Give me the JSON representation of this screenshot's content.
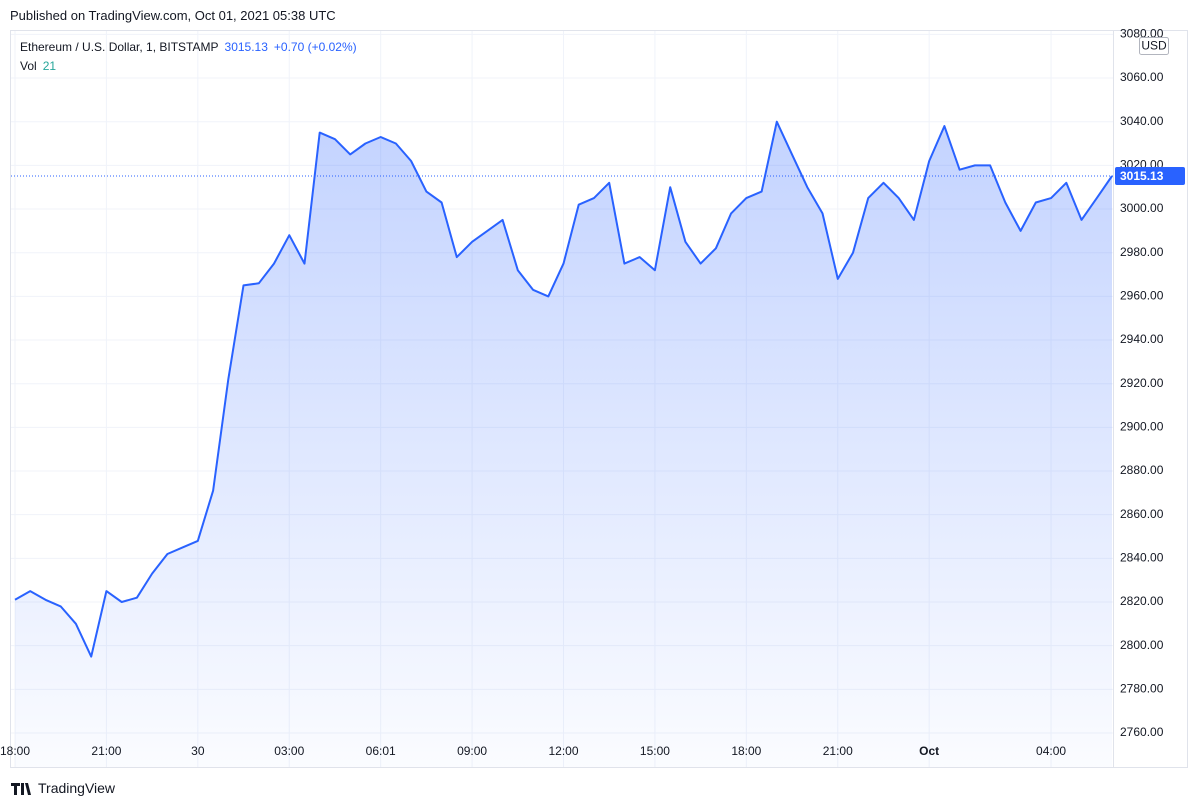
{
  "chart_data": {
    "type": "line",
    "published": "Published on TradingView.com, Oct 01, 2021 05:38 UTC",
    "title": "Ethereum / U.S. Dollar, 1, BITSTAMP",
    "last_price": 3015.13,
    "price_change": "+0.70 (+0.02%)",
    "volume_label": "Vol",
    "volume_value": 21,
    "currency": "USD",
    "branding": "TradingView",
    "x": [
      "18:00",
      "18:30",
      "19:00",
      "19:30",
      "20:00",
      "20:30",
      "21:00",
      "21:30",
      "22:00",
      "22:30",
      "23:00",
      "23:30",
      "00:00",
      "00:30",
      "01:00",
      "01:30",
      "02:00",
      "02:30",
      "03:00",
      "03:30",
      "04:00",
      "04:30",
      "05:00",
      "05:30",
      "06:00",
      "06:30",
      "07:00",
      "07:30",
      "08:00",
      "08:30",
      "09:00",
      "09:30",
      "10:00",
      "10:30",
      "11:00",
      "11:30",
      "12:00",
      "12:30",
      "13:00",
      "13:30",
      "14:00",
      "14:30",
      "15:00",
      "15:30",
      "16:00",
      "16:30",
      "17:00",
      "17:30",
      "18:00",
      "18:30",
      "19:00",
      "19:30",
      "20:00",
      "20:30",
      "21:00",
      "21:30",
      "22:00",
      "22:30",
      "23:00",
      "23:30",
      "00:00",
      "00:30",
      "01:00",
      "01:30",
      "02:00",
      "02:30",
      "03:00",
      "03:30",
      "04:00",
      "04:30",
      "05:00",
      "05:30",
      "05:38"
    ],
    "series": [
      {
        "color": "#2962ff",
        "values": [
          2821,
          2825,
          2821,
          2818,
          2810,
          2795,
          2825,
          2820,
          2822,
          2833,
          2842,
          2845,
          2848,
          2871,
          2922,
          2965,
          2966,
          2975,
          2988,
          2975,
          3035,
          3032,
          3025,
          3030,
          3033,
          3030,
          3022,
          3008,
          3003,
          2978,
          2985,
          2990,
          2995,
          2972,
          2963,
          2960,
          2975,
          3002,
          3005,
          3012,
          2975,
          2978,
          2972,
          3010,
          2985,
          2975,
          2982,
          2998,
          3005,
          3008,
          3040,
          3025,
          3010,
          2998,
          2968,
          2980,
          3005,
          3012,
          3005,
          2995,
          3022,
          3038,
          3018,
          3020,
          3020,
          3003,
          2990,
          3003,
          3005,
          3012,
          2995,
          3005,
          3015.13
        ]
      }
    ],
    "ylim": [
      2756.8,
      3082
    ],
    "yticks": [
      {
        "value": 2760,
        "label": "2760.00"
      },
      {
        "value": 2780,
        "label": "2780.00"
      },
      {
        "value": 2800,
        "label": "2800.00"
      },
      {
        "value": 2820,
        "label": "2820.00"
      },
      {
        "value": 2840,
        "label": "2840.00"
      },
      {
        "value": 2860,
        "label": "2860.00"
      },
      {
        "value": 2880,
        "label": "2880.00"
      },
      {
        "value": 2900,
        "label": "2900.00"
      },
      {
        "value": 2920,
        "label": "2920.00"
      },
      {
        "value": 2940,
        "label": "2940.00"
      },
      {
        "value": 2960,
        "label": "2960.00"
      },
      {
        "value": 2980,
        "label": "2980.00"
      },
      {
        "value": 3000,
        "label": "3000.00"
      },
      {
        "value": 3020,
        "label": "3020.00"
      },
      {
        "value": 3040,
        "label": "3040.00"
      },
      {
        "value": 3060,
        "label": "3060.00"
      },
      {
        "value": 3080,
        "label": "3080.00"
      }
    ],
    "xticks": [
      "18:00",
      "21:00",
      {
        "value": "00:00",
        "label": "30"
      },
      "03:00",
      {
        "value": "06:00",
        "label": "06:01"
      },
      "09:00",
      "12:00",
      "15:00",
      "18:00",
      "21:00",
      {
        "value": "00:00",
        "label": "Oct"
      },
      "04:00"
    ],
    "grid": true
  }
}
